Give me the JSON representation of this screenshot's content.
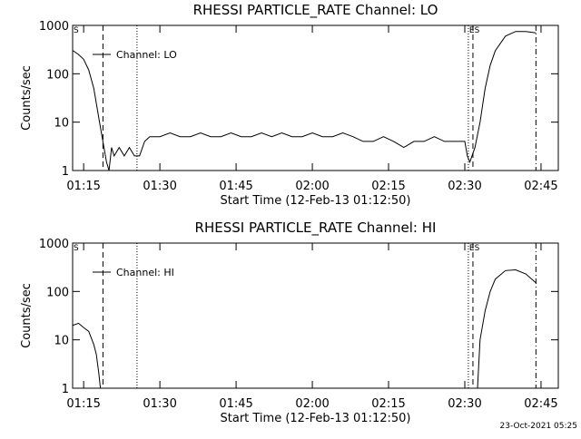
{
  "chart_data": [
    {
      "type": "line",
      "title": "RHESSI PARTICLE_RATE Channel: LO",
      "xlabel": "Start Time (12-Feb-13 01:12:50)",
      "ylabel": "Counts/sec",
      "log_y": true,
      "ylim": [
        1,
        1000
      ],
      "yticks": [
        1,
        10,
        100,
        1000
      ],
      "xlim": [
        72.83,
        168.4
      ],
      "xticks": [
        {
          "value": 75,
          "label": "01:15"
        },
        {
          "value": 90,
          "label": "01:30"
        },
        {
          "value": 105,
          "label": "01:45"
        },
        {
          "value": 120,
          "label": "02:00"
        },
        {
          "value": 135,
          "label": "02:15"
        },
        {
          "value": 150,
          "label": "02:30"
        },
        {
          "value": 165,
          "label": "02:45"
        }
      ],
      "annotations": [
        "S",
        "ES"
      ],
      "vlines": [
        {
          "x": 78.8,
          "style": "dashed"
        },
        {
          "x": 85.5,
          "style": "dotted"
        },
        {
          "x": 150.7,
          "style": "dotted"
        },
        {
          "x": 151.6,
          "style": "dashed"
        },
        {
          "x": 164,
          "style": "dashdot"
        }
      ],
      "legend": "upper left",
      "series": [
        {
          "name": "Channel: LO",
          "color": "#000000",
          "x": [
            72.9,
            74,
            75,
            76,
            77,
            78,
            78.5,
            79,
            79.5,
            80,
            80.5,
            81,
            82,
            83,
            84,
            85,
            86,
            87,
            88,
            90,
            92,
            94,
            96,
            98,
            100,
            102,
            104,
            106,
            108,
            110,
            112,
            114,
            116,
            118,
            120,
            122,
            124,
            126,
            128,
            130,
            132,
            134,
            136,
            138,
            140,
            142,
            144,
            146,
            148,
            150,
            150.5,
            151,
            152,
            153,
            154,
            155,
            156,
            158,
            160,
            162,
            164
          ],
          "values": [
            300,
            250,
            200,
            120,
            50,
            12,
            6,
            3,
            1.5,
            1,
            3,
            2,
            3,
            2,
            3,
            2,
            2,
            4,
            5,
            5,
            6,
            5,
            5,
            6,
            5,
            5,
            6,
            5,
            5,
            6,
            5,
            6,
            5,
            5,
            6,
            5,
            5,
            6,
            5,
            4,
            4,
            5,
            4,
            3,
            4,
            4,
            5,
            4,
            4,
            4,
            2,
            1.5,
            3,
            10,
            50,
            150,
            300,
            600,
            750,
            750,
            700
          ]
        }
      ]
    },
    {
      "type": "line",
      "title": "RHESSI PARTICLE_RATE Channel: HI",
      "xlabel": "Start Time (12-Feb-13 01:12:50)",
      "ylabel": "Counts/sec",
      "log_y": true,
      "ylim": [
        1,
        1000
      ],
      "yticks": [
        1,
        10,
        100,
        1000
      ],
      "xlim": [
        72.83,
        168.4
      ],
      "xticks": [
        {
          "value": 75,
          "label": "01:15"
        },
        {
          "value": 90,
          "label": "01:30"
        },
        {
          "value": 105,
          "label": "01:45"
        },
        {
          "value": 120,
          "label": "02:00"
        },
        {
          "value": 135,
          "label": "02:15"
        },
        {
          "value": 150,
          "label": "02:30"
        },
        {
          "value": 165,
          "label": "02:45"
        }
      ],
      "annotations": [
        "S",
        "ES"
      ],
      "vlines": [
        {
          "x": 78.8,
          "style": "dashed"
        },
        {
          "x": 85.5,
          "style": "dotted"
        },
        {
          "x": 150.7,
          "style": "dotted"
        },
        {
          "x": 151.6,
          "style": "dashed"
        },
        {
          "x": 164,
          "style": "dashdot"
        }
      ],
      "legend": "upper left",
      "series": [
        {
          "name": "Channel: HI",
          "color": "#000000",
          "x": [
            72.9,
            74,
            75,
            76,
            77,
            77.5,
            78,
            78.3,
            115,
            152.5,
            153,
            154,
            155,
            156,
            158,
            160,
            162,
            164
          ],
          "values": [
            20,
            22,
            18,
            15,
            8,
            5,
            2,
            1,
            null,
            1,
            10,
            40,
            100,
            180,
            270,
            280,
            230,
            150
          ]
        }
      ]
    }
  ],
  "footer": "23-Oct-2021 05:25"
}
